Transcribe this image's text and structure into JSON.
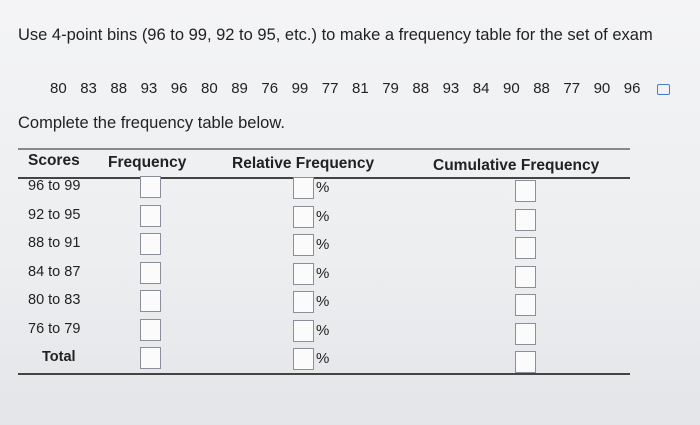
{
  "instruction": "Use 4-point bins (96 to 99, 92 to 95, etc.) to make a frequency table for the set of exam",
  "scores": [
    80,
    83,
    88,
    93,
    96,
    80,
    89,
    76,
    99,
    77,
    81,
    79,
    88,
    93,
    84,
    90,
    88,
    77,
    90,
    96
  ],
  "prompt": "Complete the frequency table below.",
  "table": {
    "headers": [
      "Scores",
      "Frequency",
      "Relative Frequency",
      "Cumulative Frequency"
    ],
    "rows": [
      {
        "label": "96 to 99",
        "unit": "%"
      },
      {
        "label": "92 to 95",
        "unit": "%"
      },
      {
        "label": "88 to 91",
        "unit": "%"
      },
      {
        "label": "84 to 87",
        "unit": "%"
      },
      {
        "label": "80 to 83",
        "unit": "%"
      },
      {
        "label": "76 to 79",
        "unit": "%"
      },
      {
        "label": "Total",
        "unit": "%"
      }
    ]
  }
}
